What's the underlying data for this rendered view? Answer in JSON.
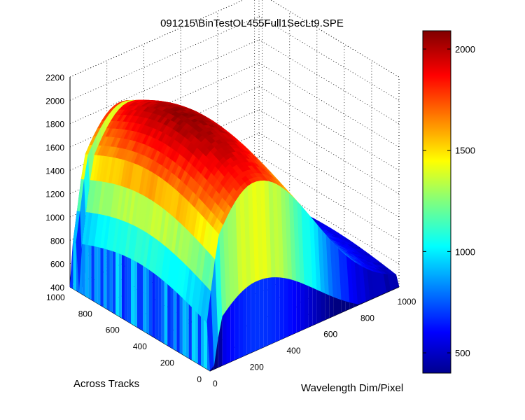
{
  "chart_data": {
    "type": "surface",
    "title": "091215\\BinTestOL455Full1SecLt9.SPE",
    "xlabel": "Wavelength Dim/Pixel",
    "ylabel": "Across Tracks",
    "zlabel": "",
    "x_ticks": [
      "0",
      "200",
      "400",
      "600",
      "800",
      "1000"
    ],
    "y_ticks": [
      "0",
      "200",
      "400",
      "600",
      "800",
      "1000"
    ],
    "z_ticks": [
      "400",
      "600",
      "800",
      "1000",
      "1200",
      "1400",
      "1600",
      "1800",
      "2000",
      "2200"
    ],
    "xlim": [
      0,
      1024
    ],
    "ylim": [
      0,
      1024
    ],
    "zlim": [
      400,
      2200
    ],
    "colorbar": {
      "ticks": [
        "500",
        "1000",
        "1500",
        "2000"
      ],
      "range": [
        400,
        2090
      ],
      "colormap": "jet"
    },
    "surface_summary": {
      "peak_value": 2050,
      "peak_wavelength_pixel": 250,
      "edge_value": 450,
      "across_track_profile": "flat with periodic dips near bin boundaries",
      "wavelength_profile": "broad hump peaking near pixel 250, falling to ~450 at pixel 1000"
    },
    "grid": true
  }
}
